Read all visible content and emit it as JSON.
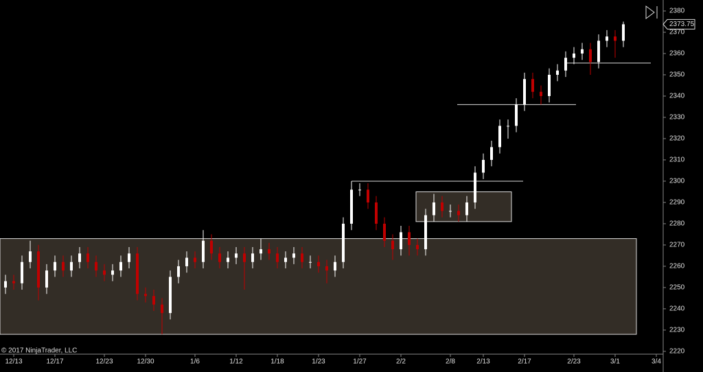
{
  "chart_data": {
    "type": "candlestick",
    "watermark": "© 2017 NinjaTrader, LLC",
    "categories": [
      null,
      "12/13",
      null,
      null,
      null,
      null,
      "12/17",
      null,
      null,
      null,
      null,
      null,
      "12/23",
      null,
      null,
      null,
      null,
      "12/30",
      null,
      null,
      null,
      null,
      null,
      "1/6",
      null,
      null,
      null,
      null,
      "1/12",
      null,
      null,
      null,
      null,
      "1/18",
      null,
      null,
      null,
      null,
      "1/23",
      null,
      null,
      null,
      null,
      "1/27",
      null,
      null,
      null,
      null,
      "2/2",
      null,
      null,
      null,
      null,
      null,
      "2/8",
      null,
      null,
      null,
      "2/13",
      null,
      null,
      null,
      null,
      "2/17",
      null,
      null,
      null,
      null,
      null,
      "2/23",
      null,
      null,
      null,
      null,
      "3/1",
      null,
      null,
      null,
      null,
      "3/4"
    ],
    "open": [
      2250,
      2253,
      2252,
      2262,
      2267,
      2250,
      2258,
      2262,
      2258,
      2262,
      2266,
      2262,
      2258,
      2256,
      2258,
      2262,
      2266,
      2247,
      2246,
      2242,
      2238,
      2255,
      2260,
      2264,
      2262,
      2272,
      2266,
      2262,
      2264,
      2266,
      2262,
      2266,
      2268,
      2266,
      2262,
      2264,
      2266,
      2262,
      2262,
      2260,
      2258,
      2262,
      2280,
      2296,
      2296,
      2290,
      2280,
      2272,
      2268,
      2276,
      2270,
      2268,
      2284,
      2290,
      2286,
      2286,
      2284,
      2290,
      2304,
      2310,
      2316,
      2326,
      2326,
      2336,
      2348,
      2342,
      2340,
      2350,
      2352,
      2358,
      2360,
      2362,
      2356,
      2366,
      2368,
      2366,
      null,
      null,
      null,
      null
    ],
    "high": [
      2256,
      2256,
      2265,
      2272,
      2270,
      2261,
      2265,
      2265,
      2265,
      2269,
      2269,
      2265,
      2261,
      2261,
      2265,
      2269,
      2269,
      2250,
      2249,
      2245,
      2258,
      2263,
      2267,
      2267,
      2277,
      2275,
      2269,
      2267,
      2269,
      2269,
      2269,
      2273,
      2271,
      2269,
      2267,
      2269,
      2269,
      2265,
      2265,
      2263,
      2265,
      2283,
      2300,
      2299,
      2299,
      2293,
      2283,
      2275,
      2279,
      2279,
      2273,
      2287,
      2294,
      2293,
      2289,
      2289,
      2293,
      2307,
      2313,
      2319,
      2329,
      2329,
      2339,
      2351,
      2351,
      2345,
      2353,
      2355,
      2361,
      2363,
      2365,
      2365,
      2369,
      2371,
      2371,
      2375,
      null,
      null,
      null,
      null
    ],
    "low": [
      2247,
      2249,
      2249,
      2259,
      2244,
      2247,
      2255,
      2255,
      2255,
      2259,
      2259,
      2255,
      2253,
      2253,
      2255,
      2259,
      2244,
      2243,
      2239,
      2228,
      2235,
      2252,
      2257,
      2259,
      2259,
      2263,
      2259,
      2259,
      2261,
      2249,
      2259,
      2263,
      2263,
      2259,
      2259,
      2261,
      2259,
      2259,
      2257,
      2252,
      2255,
      2259,
      2277,
      2293,
      2287,
      2277,
      2269,
      2263,
      2265,
      2265,
      2265,
      2265,
      2281,
      2283,
      2283,
      2281,
      2281,
      2287,
      2301,
      2307,
      2313,
      2320,
      2323,
      2333,
      2339,
      2336,
      2337,
      2347,
      2349,
      2355,
      2357,
      2350,
      2353,
      2363,
      2358,
      2363,
      null,
      null,
      null,
      null
    ],
    "close": [
      2253,
      2252,
      2262,
      2267,
      2250,
      2258,
      2262,
      2258,
      2262,
      2266,
      2262,
      2258,
      2256,
      2258,
      2262,
      2266,
      2247,
      2246,
      2242,
      2238,
      2255,
      2260,
      2264,
      2262,
      2272,
      2266,
      2262,
      2264,
      2266,
      2262,
      2266,
      2268,
      2266,
      2262,
      2264,
      2266,
      2262,
      2262,
      2260,
      2258,
      2262,
      2280,
      2296,
      2296,
      2290,
      2280,
      2272,
      2268,
      2276,
      2270,
      2268,
      2284,
      2290,
      2286,
      2286,
      2284,
      2290,
      2304,
      2310,
      2316,
      2326,
      2326,
      2336,
      2348,
      2342,
      2340,
      2350,
      2352,
      2358,
      2360,
      2362,
      2356,
      2366,
      2368,
      2366,
      2373.75,
      null,
      null,
      null,
      null
    ],
    "up_color": "#ffffff",
    "down_color": "#c00000",
    "zones": [
      [
        2228,
        2273
      ],
      [
        2281,
        2295
      ]
    ],
    "levels": [
      2300,
      2336,
      2355.5
    ],
    "ylim": [
      2219,
      2385
    ],
    "yticks": [
      2220,
      2230,
      2240,
      2250,
      2260,
      2270,
      2280,
      2290,
      2300,
      2310,
      2320,
      2330,
      2340,
      2350,
      2360,
      2370,
      2380
    ],
    "grid": false
  }
}
